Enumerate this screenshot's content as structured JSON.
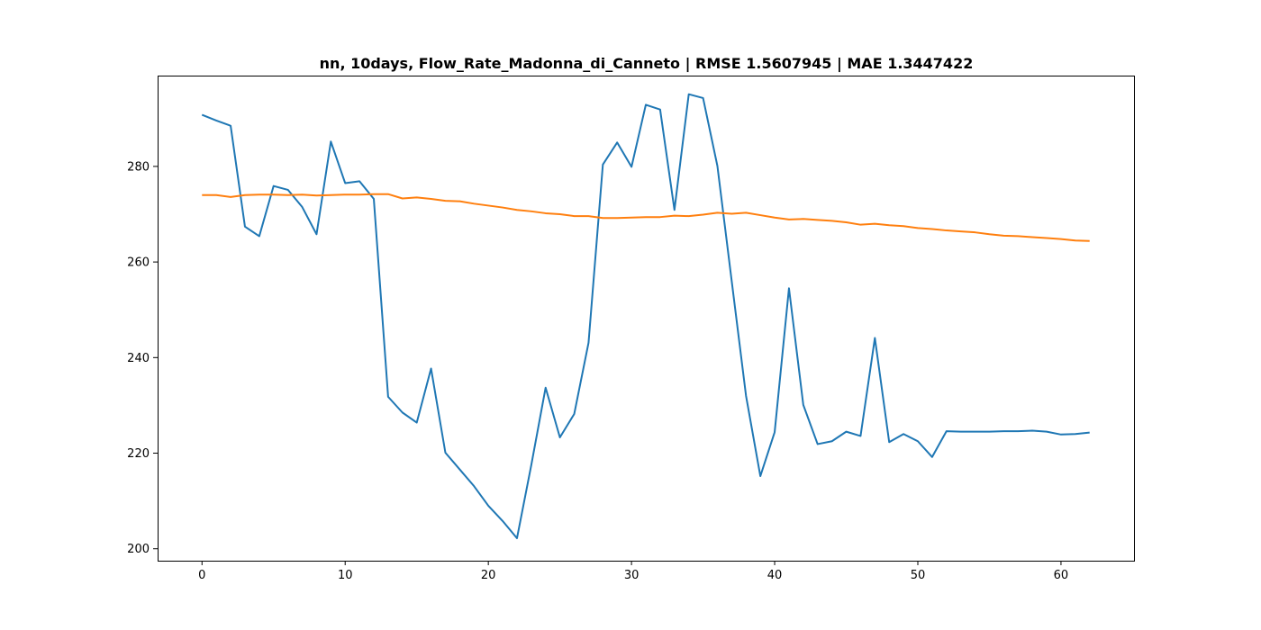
{
  "chart_data": {
    "type": "line",
    "title": "nn, 10days, Flow_Rate_Madonna_di_Canneto | RMSE 1.5607945 | MAE 1.3447422",
    "xlabel": "",
    "ylabel": "",
    "xlim": [
      -3.1,
      65.1
    ],
    "ylim": [
      197.5,
      299.0
    ],
    "xticks": [
      0,
      10,
      20,
      30,
      40,
      50,
      60
    ],
    "yticks": [
      200,
      220,
      240,
      260,
      280
    ],
    "grid": false,
    "legend": false,
    "series": [
      {
        "color": "#1f77b4",
        "x": [
          0,
          1,
          2,
          3,
          4,
          5,
          6,
          7,
          8,
          9,
          10,
          11,
          12,
          13,
          14,
          15,
          16,
          17,
          18,
          19,
          20,
          21,
          22,
          23,
          24,
          25,
          26,
          27,
          28,
          29,
          30,
          31,
          32,
          33,
          34,
          35,
          36,
          37,
          38,
          39,
          40,
          41,
          42,
          43,
          44,
          45,
          46,
          47,
          48,
          49,
          50,
          51,
          52,
          53,
          54,
          55,
          56,
          57,
          58,
          59,
          60,
          61,
          62
        ],
        "values": [
          290.8,
          289.6,
          288.5,
          267.4,
          265.4,
          275.9,
          275.1,
          271.5,
          265.8,
          285.2,
          276.5,
          276.9,
          273.2,
          231.8,
          228.5,
          226.4,
          237.7,
          220.1,
          216.6,
          213.1,
          209.0,
          205.8,
          202.2,
          217.5,
          233.7,
          223.3,
          228.2,
          243.1,
          280.4,
          285.0,
          279.9,
          292.9,
          291.9,
          270.9,
          295.1,
          294.3,
          280.1,
          256.0,
          232.0,
          215.2,
          224.4,
          254.5,
          230.1,
          221.9,
          222.5,
          224.5,
          223.6,
          244.1,
          222.3,
          224.0,
          222.5,
          219.2,
          224.6,
          224.5,
          224.5,
          224.5,
          224.6,
          224.6,
          224.7,
          224.5,
          223.9,
          224.0,
          224.3
        ]
      },
      {
        "color": "#ff7f0e",
        "x": [
          0,
          1,
          2,
          3,
          4,
          5,
          6,
          7,
          8,
          9,
          10,
          11,
          12,
          13,
          14,
          15,
          16,
          17,
          18,
          19,
          20,
          21,
          22,
          23,
          24,
          25,
          26,
          27,
          28,
          29,
          30,
          31,
          32,
          33,
          34,
          35,
          36,
          37,
          38,
          39,
          40,
          41,
          42,
          43,
          44,
          45,
          46,
          47,
          48,
          49,
          50,
          51,
          52,
          53,
          54,
          55,
          56,
          57,
          58,
          59,
          60,
          61,
          62
        ],
        "values": [
          274.0,
          274.0,
          273.6,
          274.0,
          274.1,
          274.1,
          274.0,
          274.1,
          273.9,
          274.0,
          274.1,
          274.1,
          274.2,
          274.2,
          273.3,
          273.5,
          273.2,
          272.8,
          272.7,
          272.2,
          271.8,
          271.4,
          270.9,
          270.6,
          270.2,
          270.0,
          269.6,
          269.6,
          269.2,
          269.2,
          269.3,
          269.4,
          269.4,
          269.7,
          269.6,
          269.9,
          270.3,
          270.1,
          270.3,
          269.8,
          269.3,
          268.9,
          269.0,
          268.8,
          268.6,
          268.3,
          267.8,
          268.0,
          267.7,
          267.5,
          267.1,
          266.9,
          266.6,
          266.4,
          266.2,
          265.8,
          265.5,
          265.4,
          265.2,
          265.0,
          264.8,
          264.5,
          264.4
        ]
      }
    ]
  }
}
